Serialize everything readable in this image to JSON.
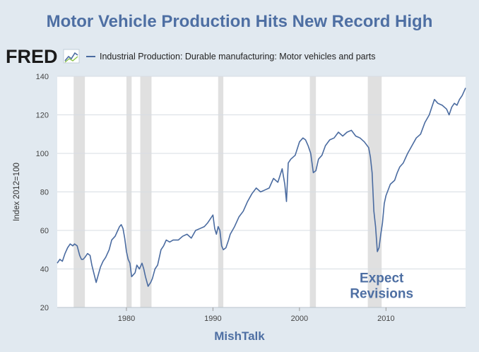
{
  "title": "Motor Vehicle Production Hits New Record High",
  "logo_text": "FRED",
  "footer": "MishTalk",
  "colors": {
    "line": "#4a6ba0",
    "recession": "#e0e0e0",
    "title": "#4e6fa3",
    "background": "#e1e9f0"
  },
  "chart_data": {
    "type": "line",
    "title": "Motor Vehicle Production Hits New Record High",
    "xlabel": "",
    "ylabel": "Index 2012=100",
    "xlim": [
      1972.0,
      2019.2
    ],
    "ylim": [
      20,
      140
    ],
    "yticks": [
      20,
      40,
      60,
      80,
      100,
      120,
      140
    ],
    "xticks": [
      1980,
      1990,
      2000,
      2010
    ],
    "grid": "horizontal",
    "legend": "top-left",
    "series": [
      {
        "name": "Industrial Production: Durable manufacturing: Motor vehicles and parts",
        "x": [
          1972.0,
          1972.3,
          1972.6,
          1972.9,
          1973.2,
          1973.5,
          1973.8,
          1974.0,
          1974.3,
          1974.6,
          1974.8,
          1975.0,
          1975.2,
          1975.5,
          1975.8,
          1976.0,
          1976.5,
          1977.0,
          1977.3,
          1977.6,
          1978.0,
          1978.3,
          1978.7,
          1979.0,
          1979.2,
          1979.4,
          1979.6,
          1979.8,
          1980.0,
          1980.2,
          1980.4,
          1980.6,
          1980.8,
          1981.0,
          1981.2,
          1981.5,
          1981.8,
          1982.0,
          1982.2,
          1982.5,
          1982.8,
          1983.0,
          1983.3,
          1983.6,
          1984.0,
          1984.3,
          1984.6,
          1985.0,
          1985.4,
          1986.0,
          1986.5,
          1987.0,
          1987.5,
          1988.0,
          1988.5,
          1989.0,
          1989.4,
          1989.7,
          1990.0,
          1990.2,
          1990.4,
          1990.6,
          1990.8,
          1991.0,
          1991.2,
          1991.5,
          1991.8,
          1992.0,
          1992.5,
          1993.0,
          1993.5,
          1994.0,
          1994.5,
          1995.0,
          1995.5,
          1996.0,
          1996.5,
          1997.0,
          1997.5,
          1998.0,
          1998.3,
          1998.5,
          1998.7,
          1999.0,
          1999.5,
          2000.0,
          2000.4,
          2000.7,
          2001.0,
          2001.3,
          2001.6,
          2001.9,
          2002.2,
          2002.6,
          2003.0,
          2003.5,
          2004.0,
          2004.5,
          2005.0,
          2005.5,
          2006.0,
          2006.5,
          2007.0,
          2007.5,
          2008.0,
          2008.2,
          2008.4,
          2008.6,
          2008.8,
          2009.0,
          2009.2,
          2009.4,
          2009.6,
          2009.8,
          2010.0,
          2010.5,
          2011.0,
          2011.3,
          2011.6,
          2012.0,
          2012.5,
          2013.0,
          2013.5,
          2014.0,
          2014.5,
          2015.0,
          2015.3,
          2015.6,
          2016.0,
          2016.5,
          2017.0,
          2017.3,
          2017.6,
          2017.9,
          2018.2,
          2018.5,
          2018.8,
          2019.0,
          2019.2
        ],
        "values": [
          43,
          45,
          44,
          48,
          51,
          53,
          52,
          53,
          52,
          47,
          45,
          45,
          46,
          48,
          47,
          42,
          33,
          41,
          44,
          46,
          50,
          55,
          57,
          60,
          62,
          63,
          61,
          56,
          49,
          45,
          43,
          36,
          37,
          38,
          42,
          40,
          43,
          40,
          36,
          31,
          33,
          35,
          40,
          42,
          50,
          52,
          55,
          54,
          55,
          55,
          57,
          58,
          56,
          60,
          61,
          62,
          64,
          66,
          68,
          61,
          58,
          62,
          60,
          52,
          50,
          51,
          55,
          58,
          62,
          67,
          70,
          75,
          79,
          82,
          80,
          81,
          82,
          87,
          85,
          92,
          84,
          75,
          95,
          97,
          99,
          106,
          108,
          107,
          104,
          100,
          90,
          91,
          97,
          99,
          104,
          107,
          108,
          111,
          109,
          111,
          112,
          109,
          108,
          106,
          103,
          98,
          90,
          70,
          62,
          49,
          51,
          58,
          64,
          74,
          78,
          84,
          86,
          90,
          93,
          95,
          100,
          104,
          108,
          110,
          116,
          120,
          124,
          128,
          126,
          125,
          123,
          120,
          124,
          126,
          125,
          128,
          130,
          132,
          134
        ]
      }
    ],
    "recessions": [
      [
        1973.9,
        1975.2
      ],
      [
        1980.0,
        1980.6
      ],
      [
        1981.6,
        1982.9
      ],
      [
        1990.6,
        1991.2
      ],
      [
        2001.2,
        2001.9
      ],
      [
        2007.9,
        2009.5
      ]
    ],
    "annotations": [
      {
        "text": "Expect Revisions",
        "x": 2009.5,
        "y": 33
      }
    ]
  }
}
